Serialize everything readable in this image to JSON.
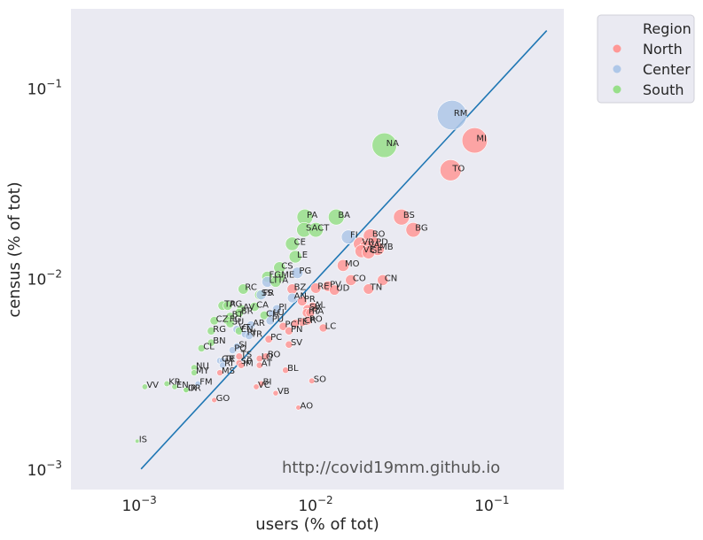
{
  "chart_data": {
    "type": "scatter",
    "xlabel": "users (% of tot)",
    "ylabel": "census (% of tot)",
    "xscale": "log",
    "yscale": "log",
    "xlim": [
      0.0004,
      0.25
    ],
    "ylim": [
      0.00078,
      0.26
    ],
    "x_ticks": [
      0.001,
      0.01,
      0.1
    ],
    "x_tick_labels": [
      {
        "base": "10",
        "exp": "−3"
      },
      {
        "base": "10",
        "exp": "−2"
      },
      {
        "base": "10",
        "exp": "−1"
      }
    ],
    "y_ticks": [
      0.001,
      0.01,
      0.1
    ],
    "y_tick_labels": [
      {
        "base": "10",
        "exp": "−3"
      },
      {
        "base": "10",
        "exp": "−2"
      },
      {
        "base": "10",
        "exp": "−1"
      }
    ],
    "grid": false,
    "background": "#eaeaf2",
    "legend": {
      "title": "Region",
      "placement": "outside-top-right",
      "entries": [
        {
          "name": "North",
          "color": "#ff9896"
        },
        {
          "name": "Center",
          "color": "#aec7e8"
        },
        {
          "name": "South",
          "color": "#98df8a"
        }
      ]
    },
    "reference_line": {
      "x": [
        0.001,
        0.2
      ],
      "y": [
        0.001,
        0.2
      ],
      "color": "#1f77b4"
    },
    "watermark": "http://covid19mm.github.io",
    "points": [
      {
        "label": "RM",
        "x": 0.058,
        "y": 0.072,
        "region": "Center",
        "size": 0.072
      },
      {
        "label": "MI",
        "x": 0.078,
        "y": 0.053,
        "region": "North",
        "size": 0.053
      },
      {
        "label": "NA",
        "x": 0.024,
        "y": 0.05,
        "region": "South",
        "size": 0.05
      },
      {
        "label": "TO",
        "x": 0.057,
        "y": 0.037,
        "region": "North",
        "size": 0.037
      },
      {
        "label": "BS",
        "x": 0.03,
        "y": 0.021,
        "region": "North",
        "size": 0.021
      },
      {
        "label": "BG",
        "x": 0.035,
        "y": 0.018,
        "region": "North",
        "size": 0.018
      },
      {
        "label": "PA",
        "x": 0.0085,
        "y": 0.021,
        "region": "South",
        "size": 0.021
      },
      {
        "label": "BA",
        "x": 0.0128,
        "y": 0.021,
        "region": "South",
        "size": 0.021
      },
      {
        "label": "SA",
        "x": 0.0084,
        "y": 0.018,
        "region": "South",
        "size": 0.018
      },
      {
        "label": "CT",
        "x": 0.0098,
        "y": 0.018,
        "region": "South",
        "size": 0.018
      },
      {
        "label": "FI",
        "x": 0.015,
        "y": 0.0165,
        "region": "Center",
        "size": 0.0165
      },
      {
        "label": "BO",
        "x": 0.02,
        "y": 0.0167,
        "region": "North",
        "size": 0.0167
      },
      {
        "label": "VR",
        "x": 0.0175,
        "y": 0.0152,
        "region": "North",
        "size": 0.0152
      },
      {
        "label": "PD",
        "x": 0.021,
        "y": 0.0152,
        "region": "North",
        "size": 0.0152
      },
      {
        "label": "VA",
        "x": 0.019,
        "y": 0.0147,
        "region": "North",
        "size": 0.0147
      },
      {
        "label": "MB",
        "x": 0.022,
        "y": 0.0143,
        "region": "North",
        "size": 0.0143
      },
      {
        "label": "VE",
        "x": 0.0178,
        "y": 0.0139,
        "region": "North",
        "size": 0.0139
      },
      {
        "label": "GE",
        "x": 0.0195,
        "y": 0.0137,
        "region": "North",
        "size": 0.0137
      },
      {
        "label": "CE",
        "x": 0.0072,
        "y": 0.0152,
        "region": "South",
        "size": 0.0152
      },
      {
        "label": "LE",
        "x": 0.0075,
        "y": 0.013,
        "region": "South",
        "size": 0.013
      },
      {
        "label": "MO",
        "x": 0.014,
        "y": 0.0117,
        "region": "North",
        "size": 0.0117
      },
      {
        "label": "CS",
        "x": 0.0061,
        "y": 0.0114,
        "region": "South",
        "size": 0.0114
      },
      {
        "label": "PG",
        "x": 0.0077,
        "y": 0.0107,
        "region": "Center",
        "size": 0.0107
      },
      {
        "label": "FG",
        "x": 0.0052,
        "y": 0.0102,
        "region": "South",
        "size": 0.0102
      },
      {
        "label": "ME",
        "x": 0.0061,
        "y": 0.0102,
        "region": "South",
        "size": 0.0102
      },
      {
        "label": "LT",
        "x": 0.0052,
        "y": 0.0096,
        "region": "Center",
        "size": 0.0096
      },
      {
        "label": "TA",
        "x": 0.0058,
        "y": 0.0096,
        "region": "South",
        "size": 0.0096
      },
      {
        "label": "CO",
        "x": 0.0155,
        "y": 0.0098,
        "region": "North",
        "size": 0.0098
      },
      {
        "label": "CN",
        "x": 0.0235,
        "y": 0.0098,
        "region": "North",
        "size": 0.0098
      },
      {
        "label": "TN",
        "x": 0.0195,
        "y": 0.0088,
        "region": "North",
        "size": 0.0088
      },
      {
        "label": "RE",
        "x": 0.0098,
        "y": 0.0089,
        "region": "North",
        "size": 0.0089
      },
      {
        "label": "PV",
        "x": 0.0115,
        "y": 0.0091,
        "region": "North",
        "size": 0.0091
      },
      {
        "label": "UD",
        "x": 0.0125,
        "y": 0.0087,
        "region": "North",
        "size": 0.0087
      },
      {
        "label": "BZ",
        "x": 0.0072,
        "y": 0.0088,
        "region": "North",
        "size": 0.0088
      },
      {
        "label": "RC",
        "x": 0.0038,
        "y": 0.0088,
        "region": "South",
        "size": 0.0088
      },
      {
        "label": "SS",
        "x": 0.0047,
        "y": 0.0082,
        "region": "South",
        "size": 0.0082
      },
      {
        "label": "FR",
        "x": 0.0048,
        "y": 0.0082,
        "region": "Center",
        "size": 0.0082
      },
      {
        "label": "AN",
        "x": 0.0072,
        "y": 0.0079,
        "region": "Center",
        "size": 0.0079
      },
      {
        "label": "PR",
        "x": 0.0082,
        "y": 0.0076,
        "region": "North",
        "size": 0.0076
      },
      {
        "label": "TP",
        "x": 0.0029,
        "y": 0.0072,
        "region": "South",
        "size": 0.0072
      },
      {
        "label": "AG",
        "x": 0.0031,
        "y": 0.0072,
        "region": "South",
        "size": 0.0072
      },
      {
        "label": "CA",
        "x": 0.0044,
        "y": 0.0071,
        "region": "South",
        "size": 0.0071
      },
      {
        "label": "AV",
        "x": 0.0037,
        "y": 0.0069,
        "region": "South",
        "size": 0.0069
      },
      {
        "label": "BR",
        "x": 0.0036,
        "y": 0.0066,
        "region": "South",
        "size": 0.0066
      },
      {
        "label": "PI",
        "x": 0.0059,
        "y": 0.0069,
        "region": "Center",
        "size": 0.0069
      },
      {
        "label": "LU",
        "x": 0.0055,
        "y": 0.0065,
        "region": "Center",
        "size": 0.0065
      },
      {
        "label": "CH",
        "x": 0.005,
        "y": 0.0064,
        "region": "South",
        "size": 0.0064
      },
      {
        "label": "AL",
        "x": 0.0094,
        "y": 0.0071,
        "region": "North",
        "size": 0.0071
      },
      {
        "label": "SV",
        "x": 0.0088,
        "y": 0.0069,
        "region": "North",
        "size": 0.0069
      },
      {
        "label": "PT",
        "x": 0.0087,
        "y": 0.0066,
        "region": "North",
        "size": 0.0066
      },
      {
        "label": "RA",
        "x": 0.0091,
        "y": 0.0066,
        "region": "North",
        "size": 0.0066
      },
      {
        "label": "CZ",
        "x": 0.0026,
        "y": 0.006,
        "region": "South",
        "size": 0.006
      },
      {
        "label": "BT",
        "x": 0.0032,
        "y": 0.0063,
        "region": "South",
        "size": 0.0063
      },
      {
        "label": "FE",
        "x": 0.0075,
        "y": 0.0058,
        "region": "North",
        "size": 0.0058
      },
      {
        "label": "CR",
        "x": 0.0082,
        "y": 0.0059,
        "region": "North",
        "size": 0.0059
      },
      {
        "label": "RO",
        "x": 0.0088,
        "y": 0.006,
        "region": "North",
        "size": 0.006
      },
      {
        "label": "PU",
        "x": 0.0054,
        "y": 0.006,
        "region": "Center",
        "size": 0.006
      },
      {
        "label": "RG",
        "x": 0.0025,
        "y": 0.0053,
        "region": "South",
        "size": 0.0053
      },
      {
        "label": "FG2",
        "display": "FG",
        "x": 0.0031,
        "y": 0.006,
        "region": "South",
        "size": 0.006
      },
      {
        "label": "SU",
        "x": 0.0032,
        "y": 0.0058,
        "region": "South",
        "size": 0.0058
      },
      {
        "label": "AR",
        "x": 0.0042,
        "y": 0.0057,
        "region": "Center",
        "size": 0.0057
      },
      {
        "label": "LC",
        "x": 0.0108,
        "y": 0.0055,
        "region": "North",
        "size": 0.0055
      },
      {
        "label": "PN",
        "x": 0.0069,
        "y": 0.0053,
        "region": "North",
        "size": 0.0053
      },
      {
        "label": "PC",
        "x": 0.0064,
        "y": 0.0056,
        "region": "North",
        "size": 0.0056
      },
      {
        "label": "VT",
        "x": 0.0035,
        "y": 0.0054,
        "region": "Center",
        "size": 0.0054
      },
      {
        "label": "EN",
        "x": 0.0036,
        "y": 0.0053,
        "region": "South",
        "size": 0.0053
      },
      {
        "label": "RI",
        "x": 0.0039,
        "y": 0.0051,
        "region": "Center",
        "size": 0.0051
      },
      {
        "label": "TR",
        "x": 0.0041,
        "y": 0.005,
        "region": "Center",
        "size": 0.005
      },
      {
        "label": "PC2",
        "display": "PC",
        "x": 0.0053,
        "y": 0.0048,
        "region": "North",
        "size": 0.0048
      },
      {
        "label": "SV2",
        "display": "SV",
        "x": 0.0069,
        "y": 0.0045,
        "region": "North",
        "size": 0.0045
      },
      {
        "label": "BN",
        "x": 0.0025,
        "y": 0.0046,
        "region": "South",
        "size": 0.0046
      },
      {
        "label": "CL",
        "x": 0.0022,
        "y": 0.0043,
        "region": "South",
        "size": 0.0043
      },
      {
        "label": "SI",
        "x": 0.0035,
        "y": 0.0044,
        "region": "Center",
        "size": 0.0044
      },
      {
        "label": "PO",
        "x": 0.0033,
        "y": 0.0042,
        "region": "Center",
        "size": 0.0042
      },
      {
        "label": "LO",
        "x": 0.0047,
        "y": 0.0038,
        "region": "North",
        "size": 0.0038
      },
      {
        "label": "BO2",
        "display": "BO",
        "x": 0.0051,
        "y": 0.0039,
        "region": "North",
        "size": 0.0039
      },
      {
        "label": "TS",
        "x": 0.0036,
        "y": 0.0039,
        "region": "North",
        "size": 0.0039
      },
      {
        "label": "GR",
        "x": 0.0028,
        "y": 0.0037,
        "region": "Center",
        "size": 0.0037
      },
      {
        "label": "TE",
        "x": 0.0029,
        "y": 0.0037,
        "region": "Center",
        "size": 0.0037
      },
      {
        "label": "SP",
        "x": 0.0036,
        "y": 0.0036,
        "region": "North",
        "size": 0.0036
      },
      {
        "label": "IM",
        "x": 0.0037,
        "y": 0.0035,
        "region": "North",
        "size": 0.0035
      },
      {
        "label": "AT",
        "x": 0.0047,
        "y": 0.0035,
        "region": "North",
        "size": 0.0035
      },
      {
        "label": "NU",
        "x": 0.002,
        "y": 0.0034,
        "region": "South",
        "size": 0.0034
      },
      {
        "label": "MY",
        "x": 0.002,
        "y": 0.0032,
        "region": "South",
        "size": 0.0032
      },
      {
        "label": "RI2",
        "display": "RI",
        "x": 0.0029,
        "y": 0.0035,
        "region": "Center",
        "size": 0.0035
      },
      {
        "label": "MS",
        "x": 0.0028,
        "y": 0.0032,
        "region": "North",
        "size": 0.0032
      },
      {
        "label": "BL",
        "x": 0.0066,
        "y": 0.0033,
        "region": "North",
        "size": 0.0033
      },
      {
        "label": "SO",
        "x": 0.0093,
        "y": 0.0029,
        "region": "North",
        "size": 0.0029
      },
      {
        "label": "BI",
        "x": 0.0048,
        "y": 0.0028,
        "region": "North",
        "size": 0.0028
      },
      {
        "label": "VC",
        "x": 0.0045,
        "y": 0.0027,
        "region": "North",
        "size": 0.0027
      },
      {
        "label": "VB",
        "x": 0.0058,
        "y": 0.0025,
        "region": "North",
        "size": 0.0025
      },
      {
        "label": "KR",
        "x": 0.0014,
        "y": 0.0028,
        "region": "South",
        "size": 0.0028
      },
      {
        "label": "FM",
        "x": 0.0021,
        "y": 0.0028,
        "region": "Center",
        "size": 0.0028
      },
      {
        "label": "VV",
        "x": 0.00105,
        "y": 0.0027,
        "region": "South",
        "size": 0.0027
      },
      {
        "label": "EN2",
        "display": "EN",
        "x": 0.00155,
        "y": 0.0027,
        "region": "South",
        "size": 0.0027
      },
      {
        "label": "OR",
        "x": 0.0018,
        "y": 0.0026,
        "region": "South",
        "size": 0.0026
      },
      {
        "label": "IR",
        "x": 0.0018,
        "y": 0.0026,
        "region": "South",
        "size": 0.0026
      },
      {
        "label": "GO",
        "x": 0.0026,
        "y": 0.0023,
        "region": "North",
        "size": 0.0023
      },
      {
        "label": "AO",
        "x": 0.0078,
        "y": 0.0021,
        "region": "North",
        "size": 0.0021
      },
      {
        "label": "IS",
        "x": 0.00095,
        "y": 0.0014,
        "region": "South",
        "size": 0.0014
      }
    ]
  }
}
